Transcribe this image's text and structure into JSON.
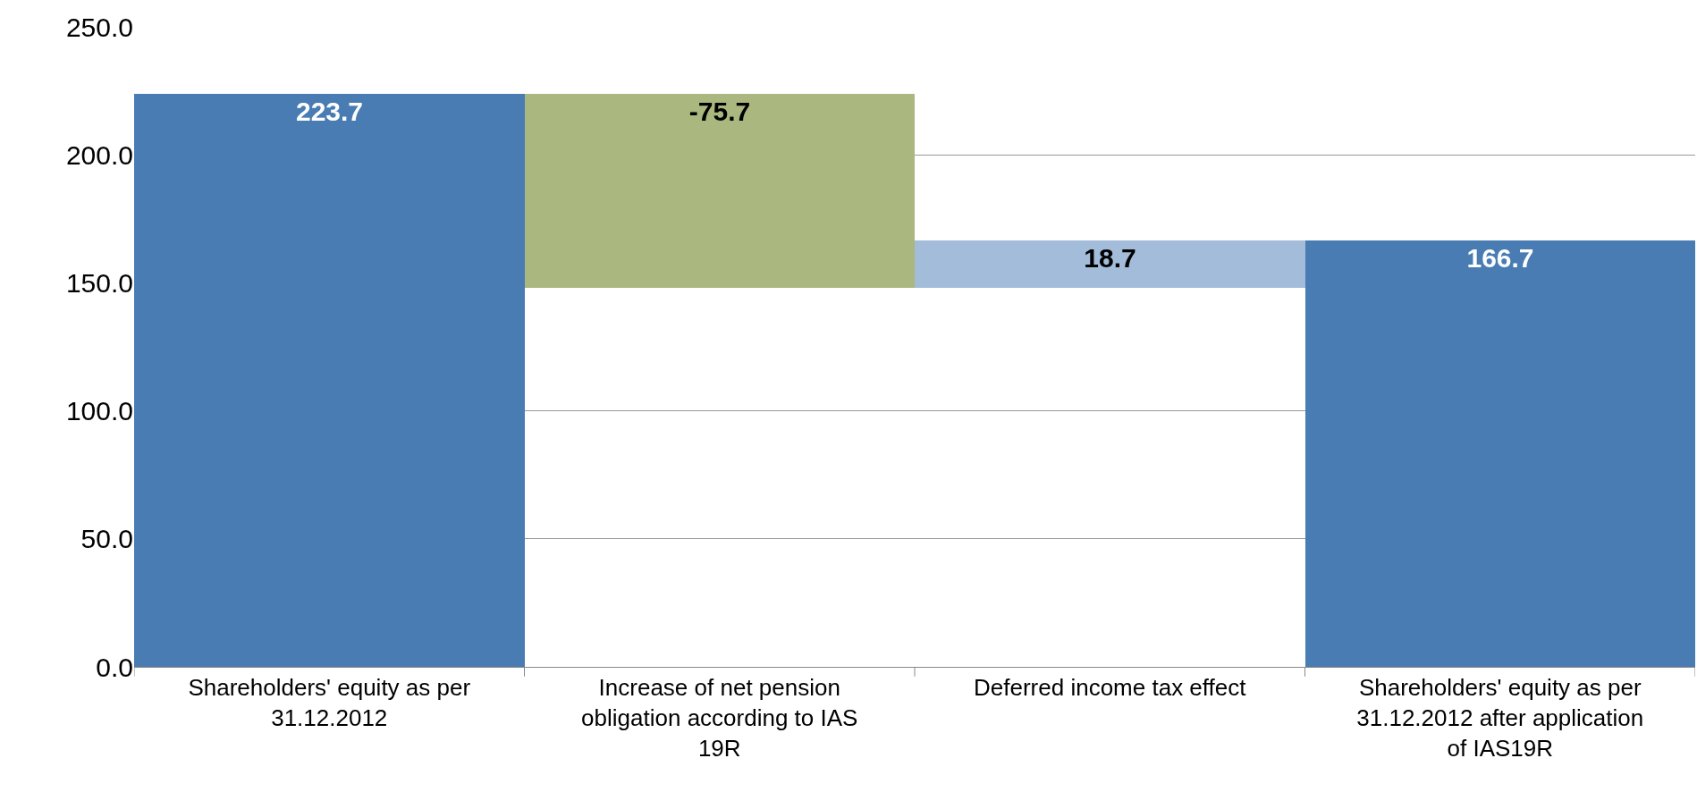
{
  "chart_data": {
    "type": "bar",
    "categories": [
      "Shareholders' equity as per 31.12.2012",
      "Increase of net pension obligation according to IAS 19R",
      "Deferred income tax effect",
      "Shareholders' equity as per 31.12.2012 after application of IAS19R"
    ],
    "values": [
      223.7,
      -75.7,
      18.7,
      166.7
    ],
    "base": [
      0,
      223.7,
      148.0,
      0
    ],
    "colors": [
      "#487cb3",
      "#aab77f",
      "#a2bcda",
      "#487cb3"
    ],
    "data_labels": true,
    "ylim": [
      0,
      250
    ],
    "yticks": [
      {
        "value": 0,
        "label": "0.0"
      },
      {
        "value": 50,
        "label": "50.0"
      },
      {
        "value": 100,
        "label": "100.0"
      },
      {
        "value": 150,
        "label": "150.0"
      },
      {
        "value": 200,
        "label": "200.0"
      },
      {
        "value": 250,
        "label": "250.0"
      }
    ],
    "grid": "y"
  }
}
